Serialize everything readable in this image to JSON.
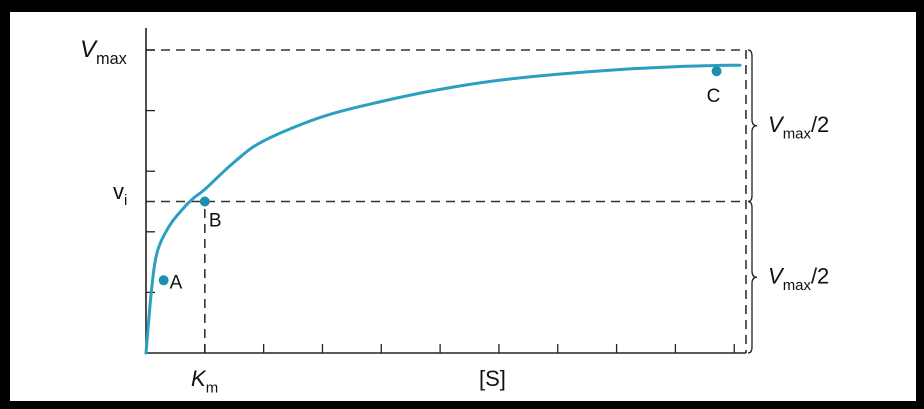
{
  "chart_data": {
    "type": "line",
    "title": "",
    "xlabel": "[S]",
    "ylabel": "vᵢ",
    "ylabel_parts": {
      "base": "v",
      "sub": "i"
    },
    "vmax_label": {
      "base": "V",
      "sub": "max"
    },
    "km_label": {
      "base": "K",
      "sub": "m"
    },
    "half_label": {
      "base": "V",
      "sub": "max",
      "suffix": "/2"
    },
    "xlim": [
      0,
      10.2
    ],
    "ylim": [
      0,
      1.0
    ],
    "x_ticks": [
      0,
      1,
      2,
      3,
      4,
      5,
      6,
      7,
      8,
      9,
      10
    ],
    "y_ticks": [
      0.2,
      0.4,
      0.6,
      0.8,
      1.0
    ],
    "grid": false,
    "series": [
      {
        "color": "#2a9fc0",
        "x": [
          0,
          0.1,
          0.2,
          0.4,
          0.6,
          0.8,
          1.0,
          1.5,
          2.0,
          3.0,
          4.0,
          5.0,
          6.0,
          7.0,
          8.0,
          9.0,
          10.0
        ],
        "y": [
          0,
          0.22,
          0.34,
          0.42,
          0.47,
          0.51,
          0.54,
          0.63,
          0.7,
          0.78,
          0.83,
          0.87,
          0.9,
          0.92,
          0.935,
          0.945,
          0.95
        ]
      }
    ],
    "points": [
      {
        "label": "A",
        "x": 0.3,
        "y": 0.24
      },
      {
        "label": "B",
        "x": 1.0,
        "y": 0.5
      },
      {
        "label": "C",
        "x": 9.7,
        "y": 0.93
      }
    ],
    "reference_lines": [
      {
        "kind": "horizontal",
        "y": 1.0,
        "label": "Vmax"
      },
      {
        "kind": "horizontal",
        "y": 0.5,
        "label": "vi"
      },
      {
        "kind": "vertical",
        "x": 1.0,
        "label": "Km"
      }
    ],
    "brackets": [
      {
        "from_y": 0.5,
        "to_y": 1.0,
        "label": "Vmax/2"
      },
      {
        "from_y": 0.0,
        "to_y": 0.5,
        "label": "Vmax/2"
      }
    ],
    "colors": {
      "curve": "#2a9fc0",
      "point": "#1a8fb0",
      "axis": "#222",
      "dashed": "#333",
      "frame": "#000"
    }
  }
}
